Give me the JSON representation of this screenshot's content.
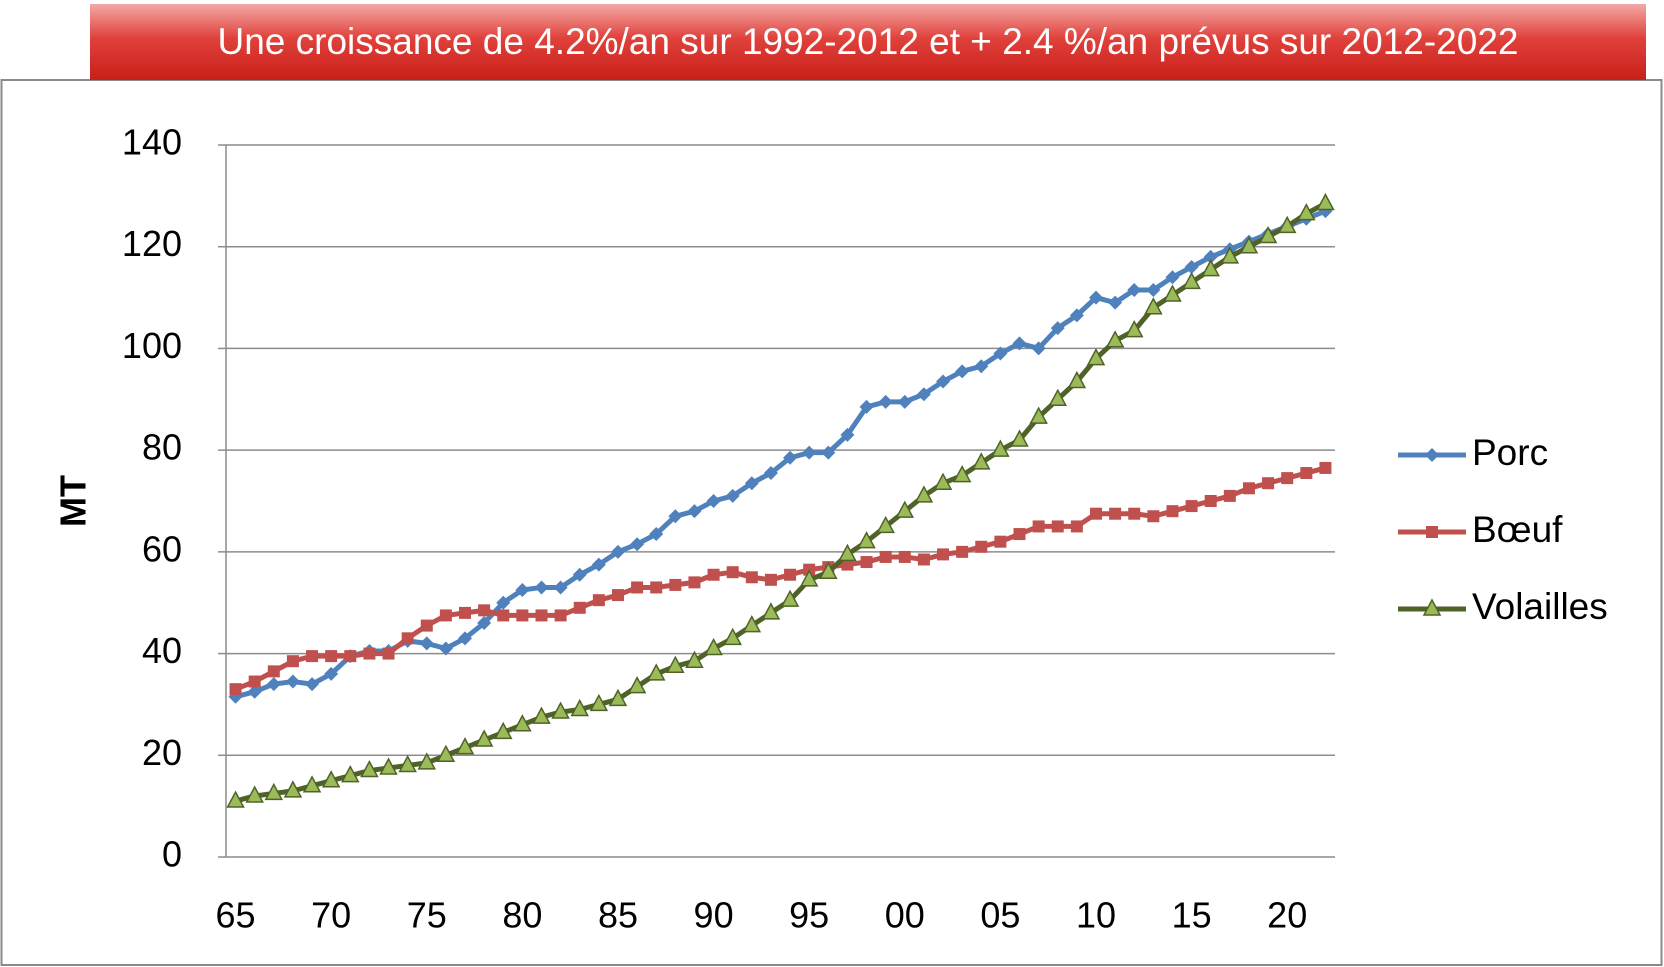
{
  "chart_data": {
    "type": "line",
    "title": "Une croissance de 4.2%/an sur 1992-2012 et + 2.4 %/an prévus sur 2012-2022",
    "ylabel": "MT",
    "x": [
      1965,
      1966,
      1967,
      1968,
      1969,
      1970,
      1971,
      1972,
      1973,
      1974,
      1975,
      1976,
      1977,
      1978,
      1979,
      1980,
      1981,
      1982,
      1983,
      1984,
      1985,
      1986,
      1987,
      1988,
      1989,
      1990,
      1991,
      1992,
      1993,
      1994,
      1995,
      1996,
      1997,
      1998,
      1999,
      2000,
      2001,
      2002,
      2003,
      2004,
      2005,
      2006,
      2007,
      2008,
      2009,
      2010,
      2011,
      2012,
      2013,
      2014,
      2015,
      2016,
      2017,
      2018,
      2019,
      2020,
      2021,
      2022
    ],
    "series": [
      {
        "name": "Porc",
        "color": "#4f81bd",
        "marker": "diamond",
        "values": [
          31.5,
          32.5,
          34,
          34.5,
          34,
          36,
          39.5,
          40.5,
          40.5,
          42.5,
          42,
          41,
          43,
          46,
          50,
          52.5,
          53,
          53,
          55.5,
          57.5,
          60,
          61.5,
          63.5,
          67,
          68,
          70,
          71,
          73.5,
          75.5,
          78.5,
          79.5,
          79.5,
          83,
          88.5,
          89.5,
          89.5,
          91,
          93.5,
          95.5,
          96.5,
          99,
          101,
          100,
          104,
          106.5,
          110,
          109,
          111.5,
          111.5,
          114,
          116,
          118,
          119.5,
          121,
          122.5,
          124,
          125.5,
          127
        ]
      },
      {
        "name": "Bœuf",
        "color": "#c0504d",
        "marker": "square",
        "values": [
          33,
          34.5,
          36.5,
          38.5,
          39.5,
          39.5,
          39.5,
          40,
          40,
          43,
          45.5,
          47.5,
          48,
          48.5,
          47.5,
          47.5,
          47.5,
          47.5,
          49,
          50.5,
          51.5,
          53,
          53,
          53.5,
          54,
          55.5,
          56,
          55,
          54.5,
          55.5,
          56.5,
          57,
          57.5,
          58,
          59,
          59,
          58.5,
          59.5,
          60,
          61,
          62,
          63.5,
          65,
          65,
          65,
          67.5,
          67.5,
          67.5,
          67,
          68,
          69,
          70,
          71,
          72.5,
          73.5,
          74.5,
          75.5,
          76.5
        ]
      },
      {
        "name": "Volailles",
        "color": "#4f6228",
        "marker_color": "#9bbb59",
        "marker": "triangle",
        "values": [
          11,
          12,
          12.5,
          13,
          14,
          15,
          16,
          17,
          17.5,
          18,
          18.5,
          20,
          21.5,
          23,
          24.5,
          26,
          27.5,
          28.5,
          29,
          30,
          31,
          33.5,
          36,
          37.5,
          38.5,
          41,
          43,
          45.5,
          48,
          50.5,
          54.5,
          56,
          59.5,
          62,
          65,
          68,
          71,
          73.5,
          75,
          77.5,
          80,
          82,
          86.5,
          90,
          93.5,
          98,
          101.5,
          103.5,
          108,
          110.5,
          113,
          115.5,
          118,
          120,
          122,
          124,
          126.5,
          128.5
        ]
      }
    ],
    "xlim": [
      1964.5,
      2022.5
    ],
    "xticks": [
      {
        "value": 1965,
        "label": "65"
      },
      {
        "value": 1970,
        "label": "70"
      },
      {
        "value": 1975,
        "label": "75"
      },
      {
        "value": 1980,
        "label": "80"
      },
      {
        "value": 1985,
        "label": "85"
      },
      {
        "value": 1990,
        "label": "90"
      },
      {
        "value": 1995,
        "label": "95"
      },
      {
        "value": 2000,
        "label": "00"
      },
      {
        "value": 2005,
        "label": "05"
      },
      {
        "value": 2010,
        "label": "10"
      },
      {
        "value": 2015,
        "label": "15"
      },
      {
        "value": 2020,
        "label": "20"
      }
    ],
    "ylim": [
      0,
      140
    ],
    "yticks": [
      0,
      20,
      40,
      60,
      80,
      100,
      120,
      140
    ],
    "grid": true,
    "legend": "right"
  }
}
